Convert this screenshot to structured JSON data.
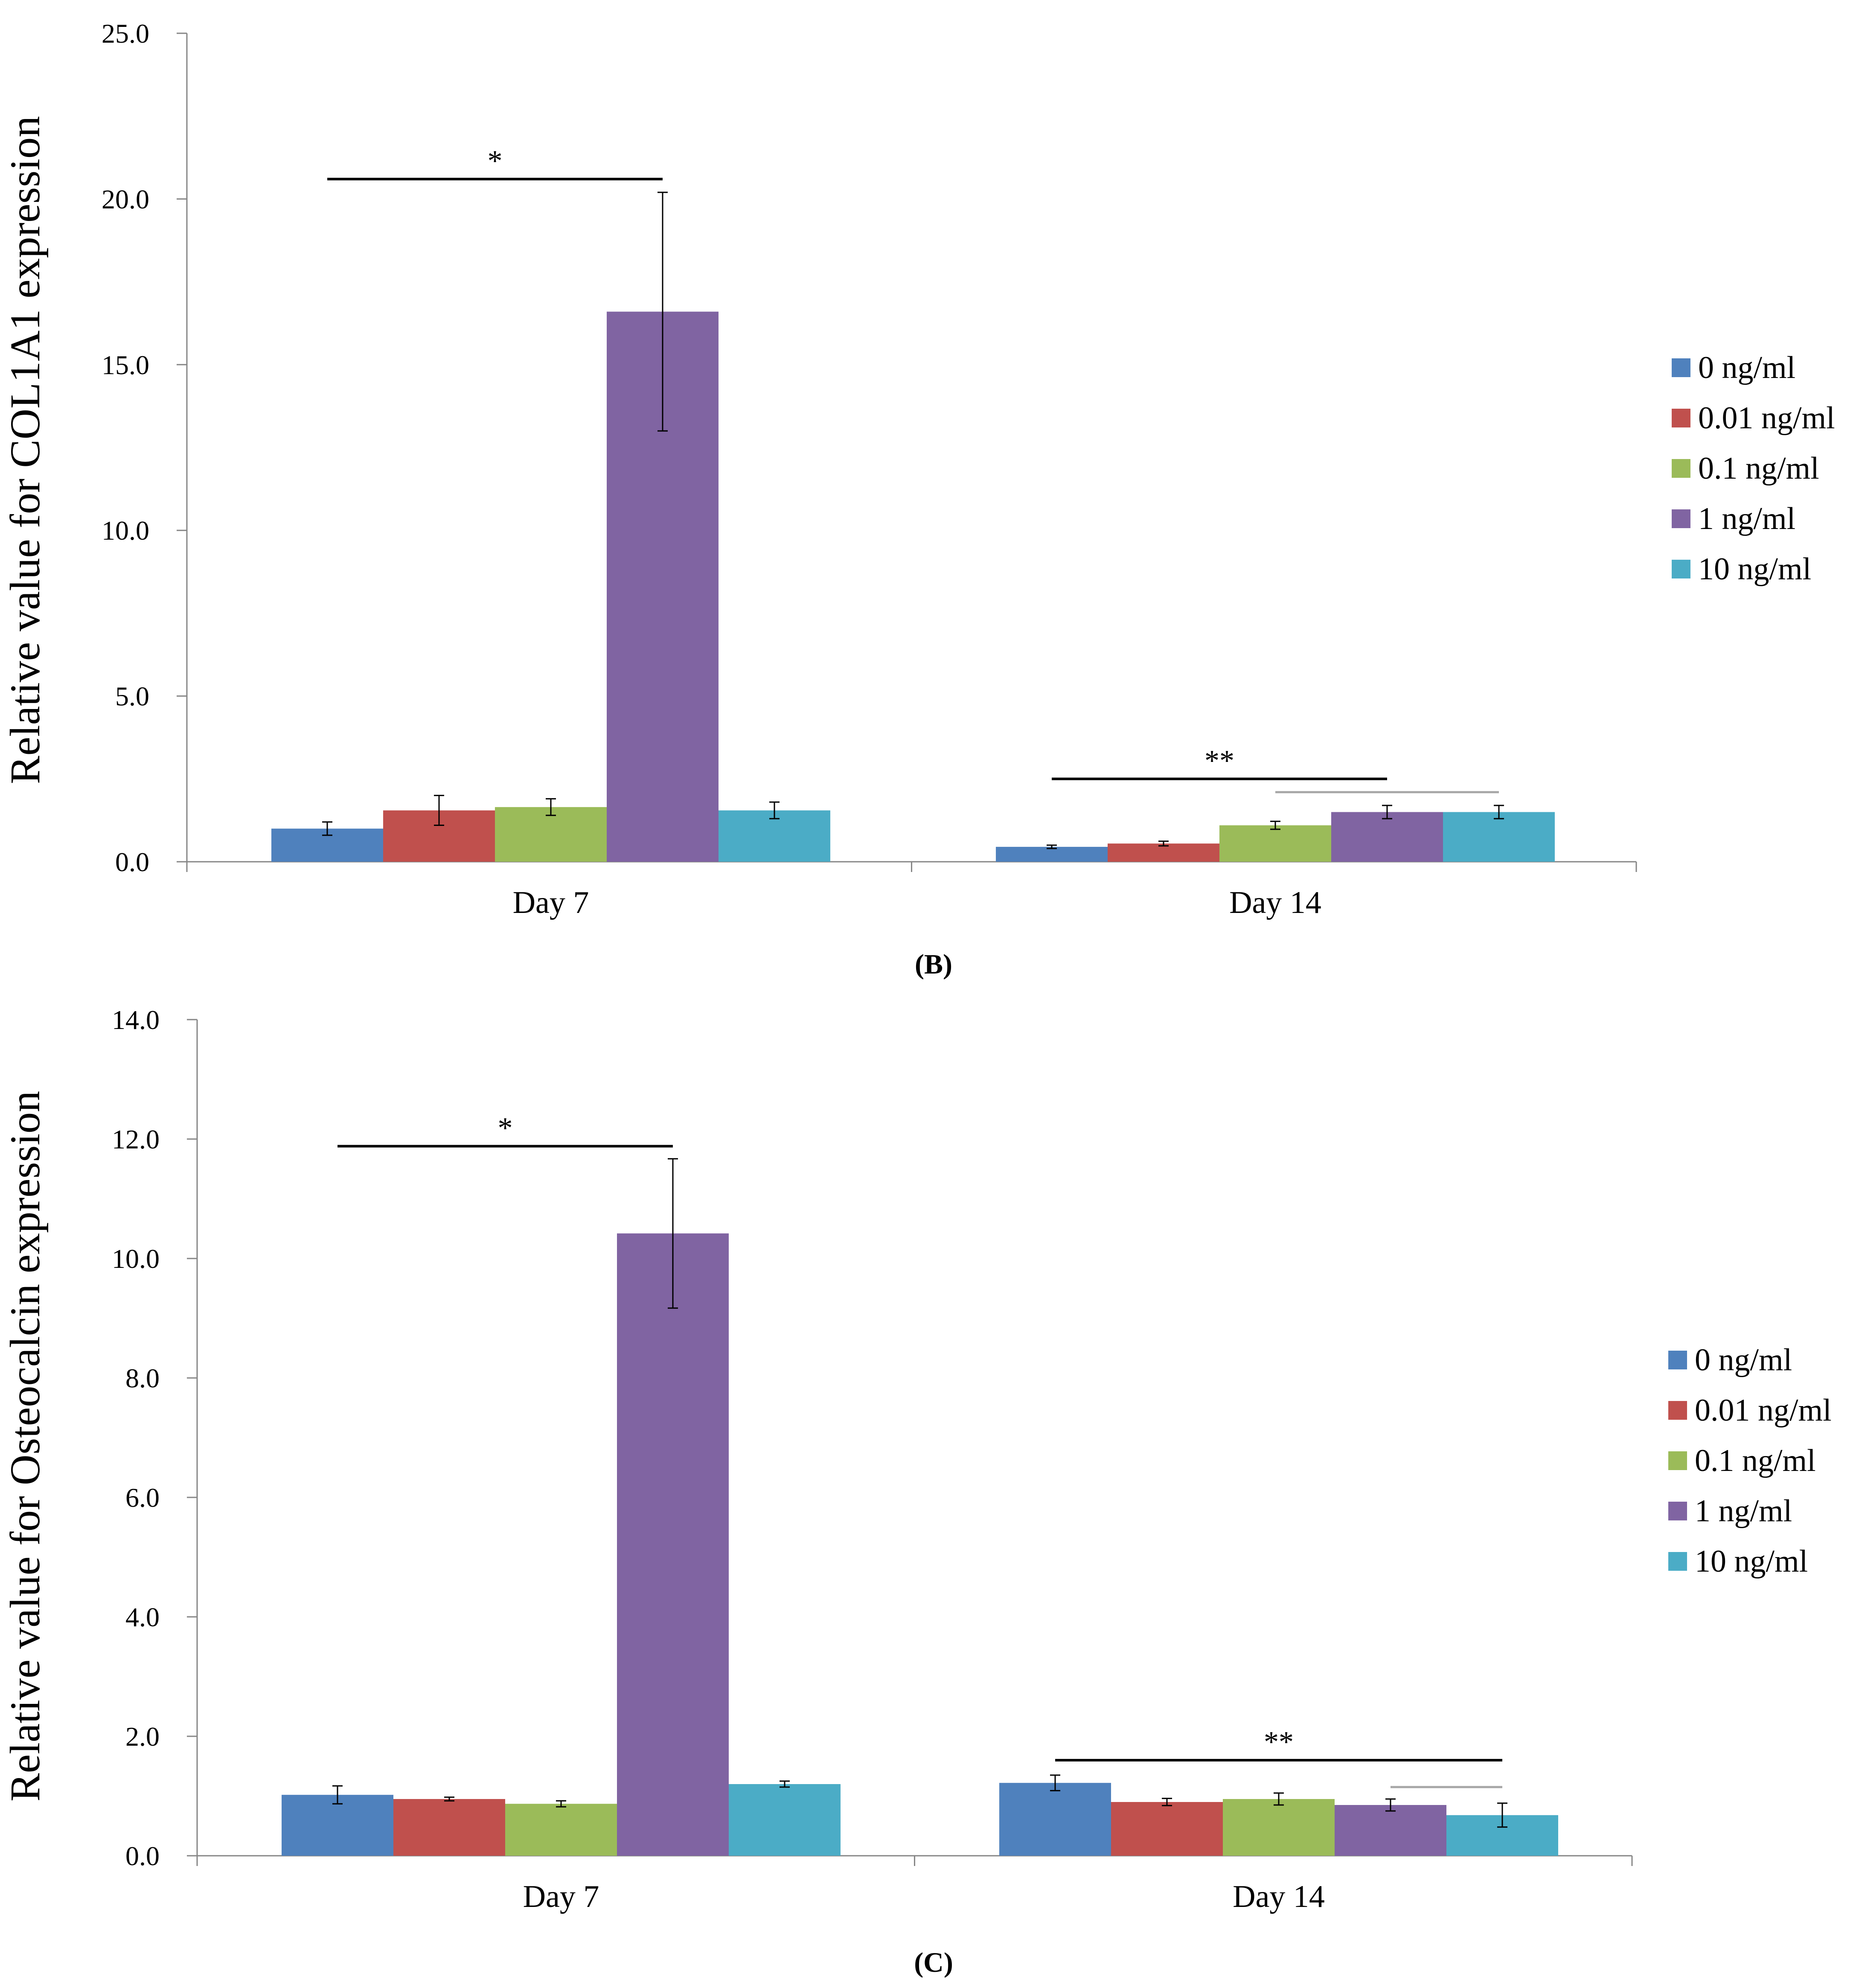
{
  "chart_data": [
    {
      "type": "bar",
      "panel": "B",
      "panel_label": "(B)",
      "title": "",
      "xlabel": "",
      "ylabel": "Relative value for COL1A1 expression",
      "ylim": [
        0,
        25
      ],
      "yticks": [
        "0.0",
        "5.0",
        "10.0",
        "15.0",
        "20.0",
        "25.0"
      ],
      "categories": [
        "Day 7",
        "Day 14"
      ],
      "series": [
        {
          "name": "0 ng/ml",
          "color": "#4f81bd",
          "values": [
            1.0,
            0.45
          ],
          "errors": [
            0.2,
            0.05
          ]
        },
        {
          "name": "0.01 ng/ml",
          "color": "#c0504d",
          "values": [
            1.55,
            0.55
          ],
          "errors": [
            0.45,
            0.07
          ]
        },
        {
          "name": "0.1 ng/ml",
          "color": "#9bbb59",
          "values": [
            1.65,
            1.1
          ],
          "errors": [
            0.25,
            0.12
          ]
        },
        {
          "name": "1 ng/ml",
          "color": "#8064a2",
          "values": [
            16.6,
            1.5
          ],
          "errors": [
            3.6,
            0.2
          ]
        },
        {
          "name": "10 ng/ml",
          "color": "#4bacc6",
          "values": [
            1.55,
            1.5
          ],
          "errors": [
            0.25,
            0.2
          ]
        }
      ],
      "annotations": [
        {
          "text": "*",
          "category": 0,
          "from_series": 0,
          "to_series": 3,
          "y": 20.6,
          "color": "#000000"
        },
        {
          "text": "**",
          "category": 1,
          "from_series": 0,
          "to_series": 3,
          "y": 2.5,
          "color": "#000000"
        },
        {
          "text": "",
          "category": 1,
          "from_series": 2,
          "to_series": 4,
          "y": 2.1,
          "color": "#a6a6a6"
        }
      ],
      "legend": "right"
    },
    {
      "type": "bar",
      "panel": "C",
      "panel_label": "(C)",
      "title": "",
      "xlabel": "",
      "ylabel": "Relative value for Osteocalcin expression",
      "ylim": [
        0,
        14
      ],
      "yticks": [
        "0.0",
        "2.0",
        "4.0",
        "6.0",
        "8.0",
        "10.0",
        "12.0",
        "14.0"
      ],
      "categories": [
        "Day 7",
        "Day 14"
      ],
      "series": [
        {
          "name": "0 ng/ml",
          "color": "#4f81bd",
          "values": [
            1.02,
            1.22
          ],
          "errors": [
            0.15,
            0.13
          ]
        },
        {
          "name": "0.01 ng/ml",
          "color": "#c0504d",
          "values": [
            0.95,
            0.9
          ],
          "errors": [
            0.03,
            0.06
          ]
        },
        {
          "name": "0.1 ng/ml",
          "color": "#9bbb59",
          "values": [
            0.87,
            0.95
          ],
          "errors": [
            0.05,
            0.1
          ]
        },
        {
          "name": "1 ng/ml",
          "color": "#8064a2",
          "values": [
            10.42,
            0.85
          ],
          "errors": [
            1.25,
            0.1
          ]
        },
        {
          "name": "10 ng/ml",
          "color": "#4bacc6",
          "values": [
            1.2,
            0.68
          ],
          "errors": [
            0.05,
            0.2
          ]
        }
      ],
      "annotations": [
        {
          "text": "*",
          "category": 0,
          "from_series": 0,
          "to_series": 3,
          "y": 11.88,
          "color": "#000000"
        },
        {
          "text": "**",
          "category": 1,
          "from_series": 0,
          "to_series": 4,
          "y": 1.6,
          "color": "#000000"
        },
        {
          "text": "",
          "category": 1,
          "from_series": 3,
          "to_series": 4,
          "y": 1.15,
          "color": "#a6a6a6"
        }
      ],
      "legend": "right"
    }
  ]
}
